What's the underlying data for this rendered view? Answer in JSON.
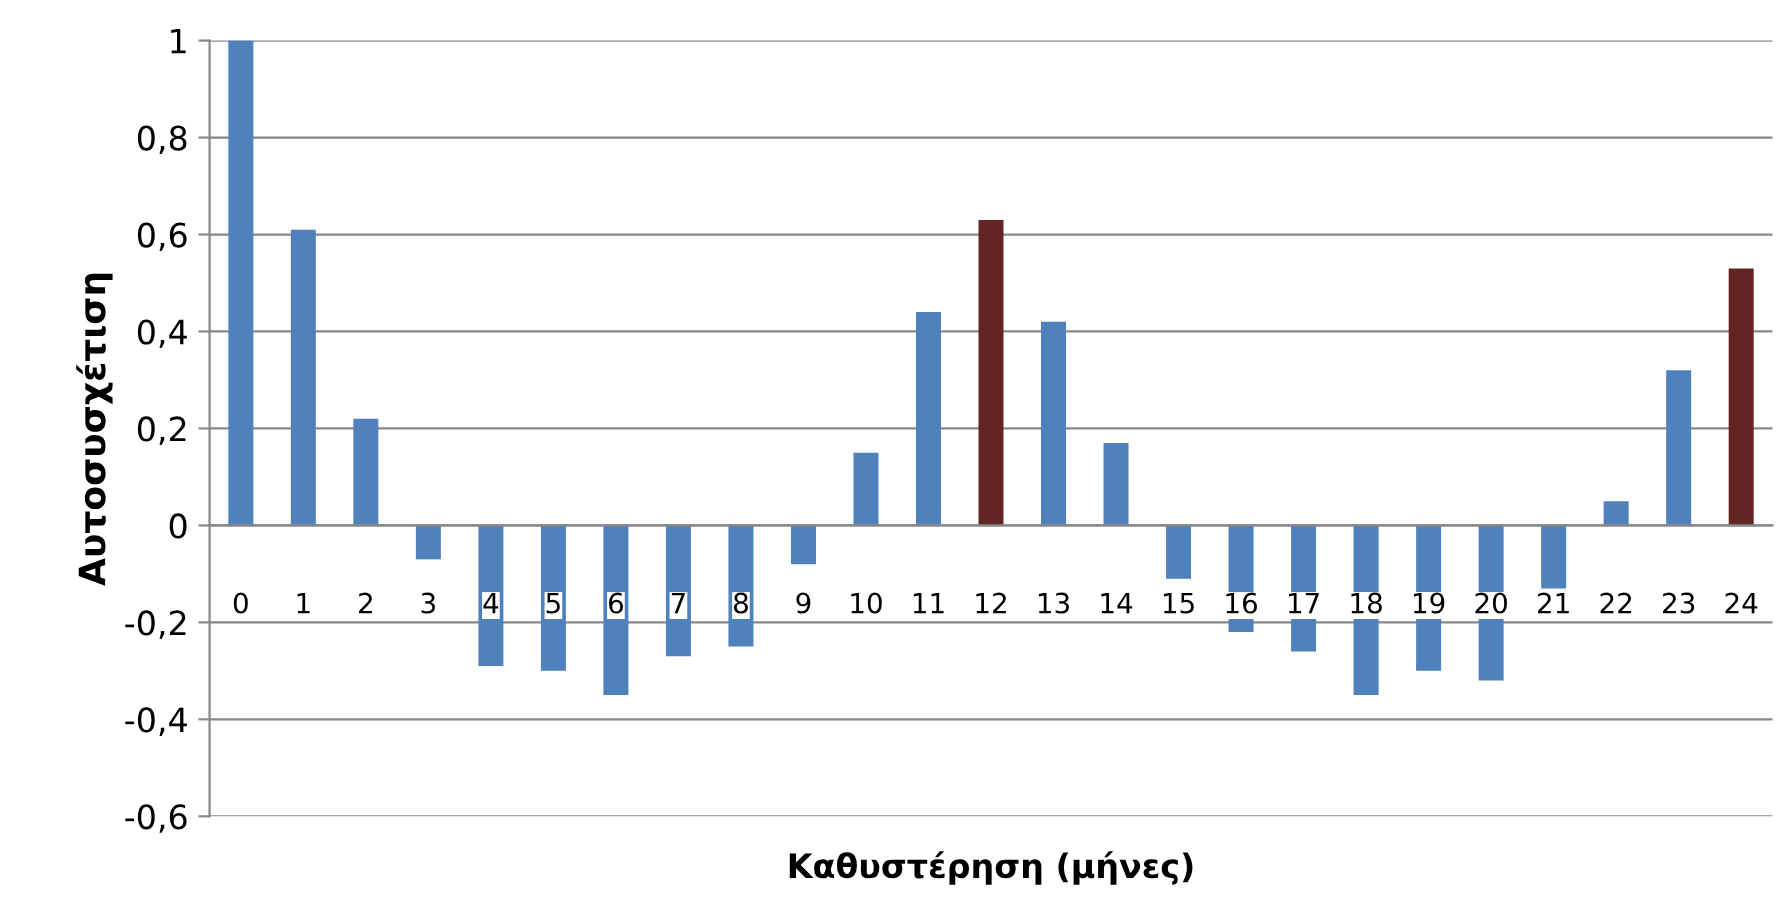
{
  "chart_data": {
    "type": "bar",
    "xlabel": "Καθυστέρηση (μήνες)",
    "ylabel": "Αυτοσυσχέτιση",
    "categories": [
      "0",
      "1",
      "2",
      "3",
      "4",
      "5",
      "6",
      "7",
      "8",
      "9",
      "10",
      "11",
      "12",
      "13",
      "14",
      "15",
      "16",
      "17",
      "18",
      "19",
      "20",
      "21",
      "22",
      "23",
      "24"
    ],
    "values": [
      1,
      0.61,
      0.22,
      -0.07,
      -0.29,
      -0.3,
      -0.35,
      -0.27,
      -0.25,
      -0.08,
      0.15,
      0.44,
      0.63,
      0.42,
      0.17,
      -0.11,
      -0.22,
      -0.26,
      -0.35,
      -0.3,
      -0.32,
      -0.13,
      0.05,
      0.32,
      0.53
    ],
    "colors": [
      "#4f81bd",
      "#4f81bd",
      "#4f81bd",
      "#4f81bd",
      "#4f81bd",
      "#4f81bd",
      "#4f81bd",
      "#4f81bd",
      "#4f81bd",
      "#4f81bd",
      "#4f81bd",
      "#4f81bd",
      "#632523",
      "#4f81bd",
      "#4f81bd",
      "#4f81bd",
      "#4f81bd",
      "#4f81bd",
      "#4f81bd",
      "#4f81bd",
      "#4f81bd",
      "#4f81bd",
      "#4f81bd",
      "#4f81bd",
      "#632523"
    ],
    "ylim": [
      -0.6,
      1
    ],
    "yticks": [
      {
        "value": -0.6,
        "label": "-0,6"
      },
      {
        "value": -0.4,
        "label": "-0,4"
      },
      {
        "value": -0.2,
        "label": "-0,2"
      },
      0,
      {
        "value": 0.2,
        "label": "0,2"
      },
      {
        "value": 0.4,
        "label": "0,4"
      },
      {
        "value": 0.6,
        "label": "0,6"
      },
      {
        "value": 0.8,
        "label": "0,8"
      },
      1
    ],
    "grid": "y",
    "legend": false
  }
}
